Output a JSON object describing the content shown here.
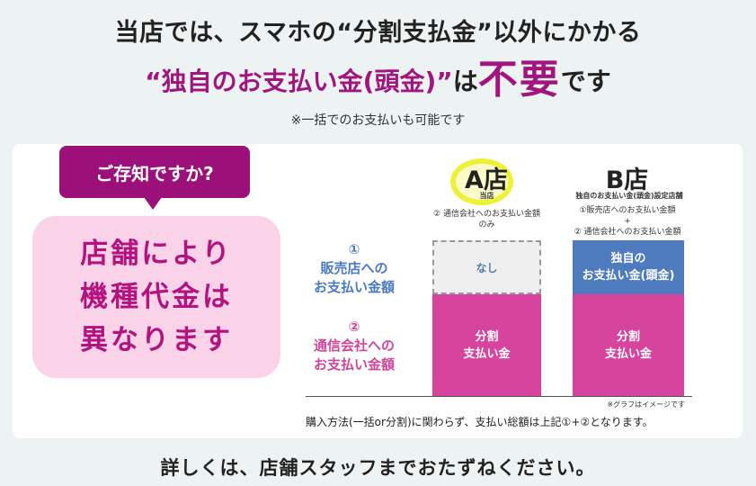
{
  "headline": {
    "line1": "当店では、スマホの“分割支払金”以外にかかる",
    "line2_part1": "“独自のお支払い金(頭金)”",
    "line2_part2": "は",
    "line2_emphasis": "不要",
    "line2_part3": "です",
    "note": "※一括でのお支払いも可能です"
  },
  "callout": {
    "question": "ご存知ですか?",
    "message_lines": [
      "店舗により",
      "機種代金は",
      "異なります"
    ]
  },
  "chart": {
    "store_a": {
      "title": "A店",
      "subtitle": "当店",
      "desc_lines": [
        "② 通信会社へのお支払い金額",
        "のみ"
      ],
      "top_bar": "なし",
      "bottom_bar_lines": [
        "分割",
        "支払い金"
      ]
    },
    "store_b": {
      "title": "B店",
      "subtitle": "独自のお支払い金(頭金)設定店舗",
      "desc_lines": [
        "①販売店へのお支払い金額",
        "+",
        "② 通信会社へのお支払い金額"
      ],
      "top_bar_lines": [
        "独自の",
        "お支払い金(頭金)"
      ],
      "bottom_bar_lines": [
        "分割",
        "支払い金"
      ]
    },
    "label1": {
      "num": "①",
      "lines": [
        "販売店への",
        "お支払い金額"
      ]
    },
    "label2": {
      "num": "②",
      "lines": [
        "通信会社への",
        "お支払い金額"
      ]
    },
    "graph_note": "※グラフはイメージです",
    "bottom_note": "購入方法(一括or分割)に関わらず、支払い総額は上記①+②となります。"
  },
  "footer": "詳しくは、店舗スタッフまでおたずねください。",
  "colors": {
    "purple": "#9b1179",
    "pink_bar": "#d6449d",
    "blue_bar": "#4d7bbd",
    "pink_box": "#fbd3e8",
    "highlight": "#eef13a"
  }
}
